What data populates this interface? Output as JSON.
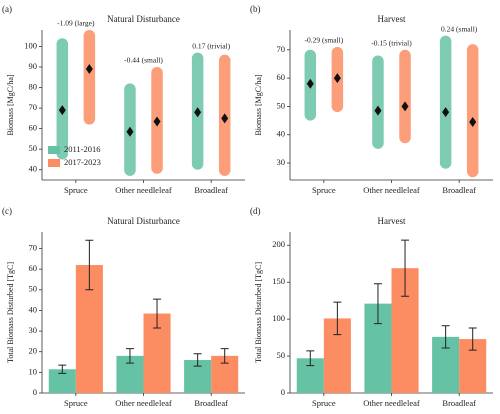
{
  "chart_data": [
    {
      "type": "strip",
      "panel_label": "(a)",
      "title": "Natural Disturbance",
      "ylabel": "Biomass [MgC/ha]",
      "categories": [
        "Spruce",
        "Other needleleaf",
        "Broadleaf"
      ],
      "series": [
        {
          "name": "2011-2016",
          "color": "#66c2a5",
          "values": [
            69,
            58.5,
            68
          ],
          "ranges": [
            [
              45,
              104
            ],
            [
              37,
              82
            ],
            [
              40,
              97
            ]
          ]
        },
        {
          "name": "2017-2023",
          "color": "#fc8d62",
          "values": [
            89,
            63.5,
            65
          ],
          "ranges": [
            [
              62,
              108
            ],
            [
              38,
              90
            ],
            [
              37,
              96
            ]
          ]
        }
      ],
      "annotations": [
        "-1.09 (large)",
        "-0.44 (small)",
        "0.17 (trivial)"
      ],
      "ylim": [
        35,
        108
      ],
      "yticks": [
        40,
        50,
        60,
        70,
        80,
        90,
        100
      ],
      "legend": "lower left"
    },
    {
      "type": "strip",
      "panel_label": "(b)",
      "title": "Harvest",
      "ylabel": "Biomass [MgC/ha]",
      "categories": [
        "Spruce",
        "Other needleleaf",
        "Broadleaf"
      ],
      "series": [
        {
          "color": "#66c2a5",
          "values": [
            58,
            48.5,
            48
          ],
          "ranges": [
            [
              45,
              70
            ],
            [
              35,
              68
            ],
            [
              28,
              75
            ]
          ]
        },
        {
          "color": "#fc8d62",
          "values": [
            60,
            50,
            44.5
          ],
          "ranges": [
            [
              48,
              71
            ],
            [
              37,
              70
            ],
            [
              25,
              72
            ]
          ]
        }
      ],
      "annotations": [
        "-0.29 (small)",
        "-0.15 (trivial)",
        "0.24 (small)"
      ],
      "ylim": [
        24,
        77
      ],
      "yticks": [
        30,
        40,
        50,
        60,
        70
      ]
    },
    {
      "type": "bar",
      "panel_label": "(c)",
      "title": "Natural Disturbance",
      "ylabel": "Total Biomass Disturbed [TgC]",
      "categories": [
        "Spruce",
        "Other needleleaf",
        "Broadleaf"
      ],
      "series": [
        {
          "color": "#66c2a5",
          "values": [
            11.5,
            18,
            16
          ],
          "errors": [
            2,
            3.5,
            3
          ]
        },
        {
          "color": "#fc8d62",
          "values": [
            62,
            38.5,
            18
          ],
          "errors": [
            12,
            7,
            3.5
          ]
        }
      ],
      "ylim": [
        0,
        78
      ],
      "yticks": [
        0,
        10,
        20,
        30,
        40,
        50,
        60,
        70
      ]
    },
    {
      "type": "bar",
      "panel_label": "(d)",
      "title": "Harvest",
      "ylabel": "Total Biomass Disturbed [TgC]",
      "categories": [
        "Spruce",
        "Other needleleaf",
        "Broadleaf"
      ],
      "series": [
        {
          "color": "#66c2a5",
          "values": [
            47,
            121,
            76
          ],
          "errors": [
            10,
            27,
            15
          ]
        },
        {
          "color": "#fc8d62",
          "values": [
            101,
            169,
            73
          ],
          "errors": [
            22,
            38,
            15
          ]
        }
      ],
      "ylim": [
        0,
        218
      ],
      "yticks": [
        0,
        50,
        100,
        150,
        200
      ]
    }
  ]
}
